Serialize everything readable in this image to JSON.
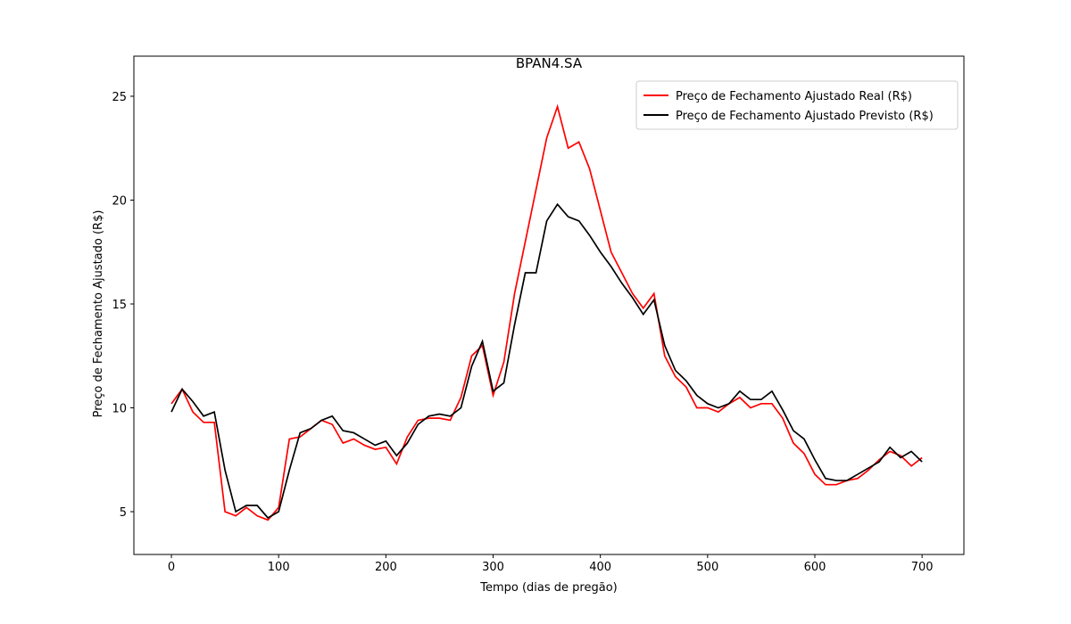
{
  "chart_data": {
    "type": "line",
    "title": "BPAN4.SA",
    "xlabel": "Tempo (dias de pregão)",
    "ylabel": "Preço de Fechamento Ajustado (R$)",
    "x": [
      0,
      10,
      20,
      30,
      40,
      50,
      60,
      70,
      80,
      90,
      100,
      110,
      120,
      130,
      140,
      150,
      160,
      170,
      180,
      190,
      200,
      210,
      220,
      230,
      240,
      250,
      260,
      270,
      280,
      290,
      300,
      310,
      320,
      330,
      340,
      350,
      360,
      370,
      380,
      390,
      400,
      410,
      420,
      430,
      440,
      450,
      460,
      470,
      480,
      490,
      500,
      510,
      520,
      530,
      540,
      550,
      560,
      570,
      580,
      590,
      600,
      610,
      620,
      630,
      640,
      650,
      660,
      670,
      680,
      690,
      700
    ],
    "series": [
      {
        "name": "Preço de Fechamento Ajustado Real (R$)",
        "color": "#ff0000",
        "values": [
          10.2,
          10.9,
          9.8,
          9.3,
          9.3,
          5.0,
          4.8,
          5.2,
          4.8,
          4.6,
          5.2,
          8.5,
          8.6,
          9.0,
          9.4,
          9.2,
          8.3,
          8.5,
          8.2,
          8.0,
          8.1,
          7.3,
          8.6,
          9.4,
          9.5,
          9.5,
          9.4,
          10.5,
          12.5,
          13.0,
          10.6,
          12.2,
          15.5,
          18.0,
          20.5,
          23.0,
          24.5,
          22.5,
          22.8,
          21.5,
          19.5,
          17.5,
          16.5,
          15.5,
          14.8,
          15.5,
          12.5,
          11.5,
          11.0,
          10.0,
          10.0,
          9.8,
          10.2,
          10.5,
          10.0,
          10.2,
          10.2,
          9.5,
          8.3,
          7.8,
          6.8,
          6.3,
          6.3,
          6.5,
          6.6,
          7.0,
          7.5,
          7.9,
          7.7,
          7.2,
          7.6
        ]
      },
      {
        "name": "Preço de Fechamento Ajustado Previsto (R$)",
        "color": "#000000",
        "values": [
          9.8,
          10.9,
          10.3,
          9.6,
          9.8,
          7.0,
          5.0,
          5.3,
          5.3,
          4.7,
          5.0,
          7.0,
          8.8,
          9.0,
          9.4,
          9.6,
          8.9,
          8.8,
          8.5,
          8.2,
          8.4,
          7.7,
          8.3,
          9.2,
          9.6,
          9.7,
          9.6,
          10.0,
          12.0,
          13.2,
          10.8,
          11.2,
          14.0,
          16.5,
          16.5,
          19.0,
          19.8,
          19.2,
          19.0,
          18.3,
          17.5,
          16.8,
          16.0,
          15.3,
          14.5,
          15.2,
          13.0,
          11.8,
          11.3,
          10.6,
          10.2,
          10.0,
          10.2,
          10.8,
          10.4,
          10.4,
          10.8,
          9.9,
          8.9,
          8.5,
          7.5,
          6.6,
          6.5,
          6.5,
          6.8,
          7.1,
          7.4,
          8.1,
          7.6,
          7.9,
          7.4
        ]
      }
    ],
    "xlim": [
      -35,
      739
    ],
    "ylim": [
      2.94,
      26.93
    ],
    "xticks": [
      0,
      100,
      200,
      300,
      400,
      500,
      600,
      700
    ],
    "yticks": [
      5,
      10,
      15,
      20,
      25
    ],
    "legend": "upper right"
  }
}
